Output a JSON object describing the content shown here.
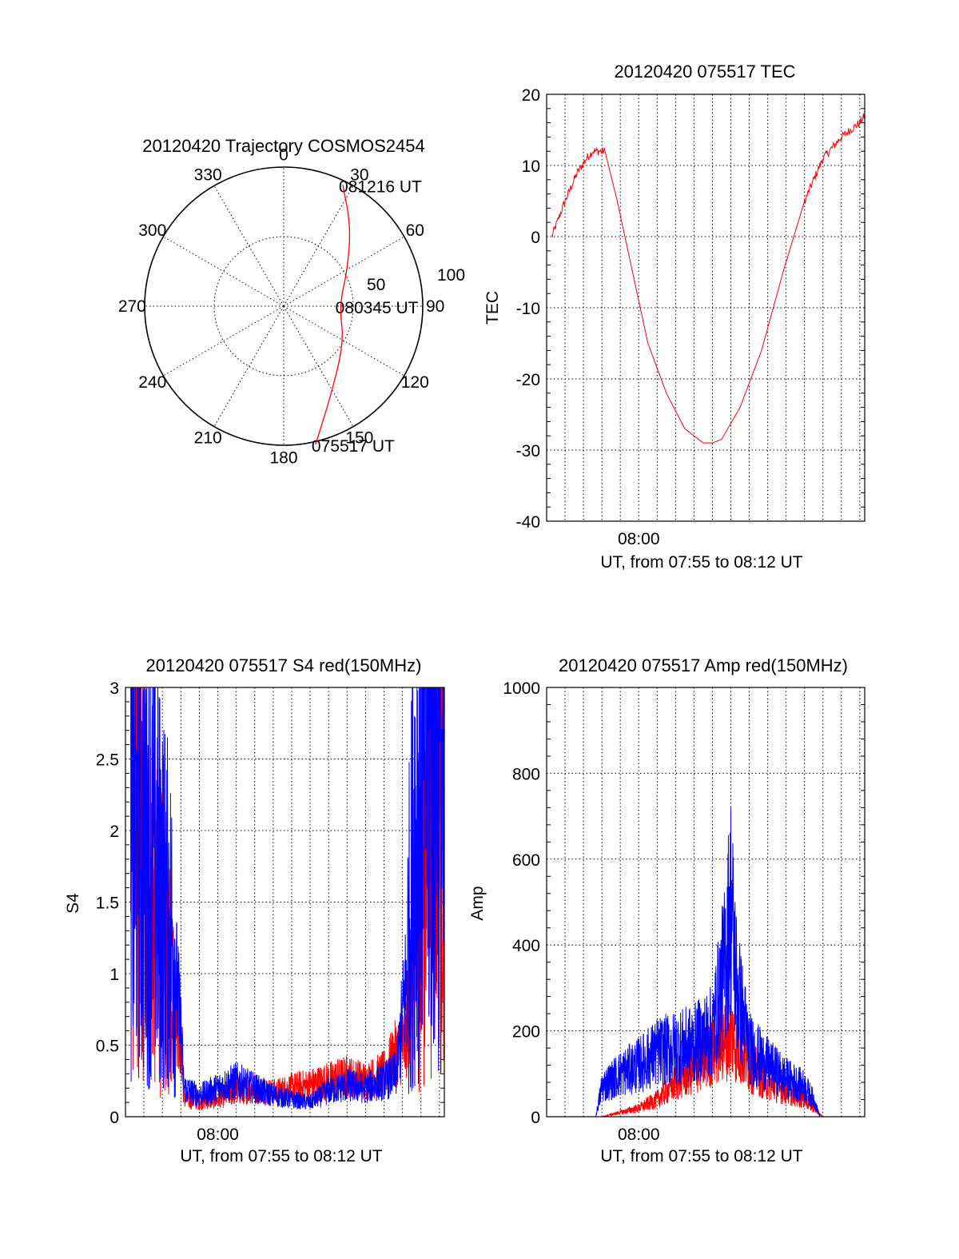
{
  "colors": {
    "red": "#ff0000",
    "blue": "#0000ff",
    "axis": "#000000"
  },
  "chart_data": [
    {
      "type": "polar",
      "title": "20120420 Trajectory COSMOS2454",
      "azimuth_labels": [
        "0",
        "30",
        "60",
        "90",
        "120",
        "150",
        "180",
        "210",
        "240",
        "270",
        "300",
        "330"
      ],
      "radial_labels": [
        "50",
        "100"
      ],
      "rlim": [
        0,
        100
      ],
      "grid": true,
      "series": [
        {
          "color": "red",
          "points": [
            {
              "az": 167,
              "r": 102
            },
            {
              "az": 150,
              "r": 70
            },
            {
              "az": 120,
              "r": 50
            },
            {
              "az": 90,
              "r": 40
            },
            {
              "az": 60,
              "r": 53
            },
            {
              "az": 40,
              "r": 75
            },
            {
              "az": 26,
              "r": 97
            }
          ]
        }
      ],
      "annotations": [
        {
          "text": "081216 UT",
          "az": 26,
          "r": 97
        },
        {
          "text": "080345 UT",
          "az": 90,
          "r": 40
        },
        {
          "text": "075517 UT",
          "az": 167,
          "r": 102
        }
      ]
    },
    {
      "type": "line",
      "title": "20120420 075517 TEC",
      "xlabel": "UT, from 07:55 to 08:12 UT",
      "ylabel": "TEC",
      "xlim": [
        "07:55",
        "08:12"
      ],
      "xticks": [
        "08:00"
      ],
      "ylim": [
        -40,
        20
      ],
      "yticks": [
        -40,
        -30,
        -20,
        -10,
        0,
        10,
        20
      ],
      "grid": true,
      "series": [
        {
          "color": "red",
          "x": [
            "07:55:17",
            "07:56:00",
            "07:56:40",
            "07:57:10",
            "07:57:30",
            "07:58:10",
            "07:58:50",
            "07:59:40",
            "08:00:30",
            "08:01:30",
            "08:02:30",
            "08:03:30",
            "08:04:00",
            "08:04:30",
            "08:05:30",
            "08:06:40",
            "08:07:50",
            "08:09:00",
            "08:10:00",
            "08:11:00",
            "08:12:00",
            "08:12:16"
          ],
          "y": [
            0,
            5,
            9,
            11,
            12,
            12,
            5,
            -5,
            -15,
            -22,
            -27,
            -29,
            -29,
            -28.5,
            -24,
            -16,
            -5,
            5,
            11,
            14,
            16,
            17
          ]
        }
      ]
    },
    {
      "type": "line",
      "title": "20120420 075517 S4 red(150MHz)",
      "xlabel": "UT, from 07:55 to 08:12 UT",
      "ylabel": "S4",
      "xlim": [
        "07:55",
        "08:12"
      ],
      "xticks": [
        "08:00"
      ],
      "ylim": [
        0,
        3
      ],
      "yticks": [
        0,
        0.5,
        1,
        1.5,
        2,
        2.5,
        3
      ],
      "grid": true,
      "series": [
        {
          "color": "red",
          "x": [
            "07:55:17",
            "07:56:30",
            "07:57:30",
            "07:58:00",
            "07:58:10",
            "07:59:00",
            "08:00:00",
            "08:01:00",
            "08:02:00",
            "08:03:00",
            "08:04:00",
            "08:05:00",
            "08:06:00",
            "08:07:00",
            "08:08:00",
            "08:09:00",
            "08:09:40",
            "08:10:10",
            "08:10:40",
            "08:11:30",
            "08:12:00",
            "08:12:16"
          ],
          "y": [
            2.2,
            1.4,
            1.0,
            0.55,
            0.12,
            0.1,
            0.12,
            0.18,
            0.2,
            0.17,
            0.2,
            0.22,
            0.25,
            0.28,
            0.25,
            0.3,
            0.45,
            0.5,
            1.2,
            2.5,
            2.8,
            2.2
          ]
        },
        {
          "color": "blue",
          "x": [
            "07:55:17",
            "07:56:30",
            "07:57:30",
            "07:58:00",
            "07:58:10",
            "07:59:00",
            "08:00:00",
            "08:01:00",
            "08:02:00",
            "08:03:00",
            "08:04:00",
            "08:05:00",
            "08:06:00",
            "08:07:00",
            "08:08:00",
            "08:09:00",
            "08:09:40",
            "08:10:10",
            "08:10:40",
            "08:11:30",
            "08:12:00",
            "08:12:16"
          ],
          "y": [
            2.0,
            1.8,
            1.3,
            0.6,
            0.2,
            0.15,
            0.2,
            0.25,
            0.2,
            0.15,
            0.12,
            0.1,
            0.18,
            0.22,
            0.2,
            0.25,
            0.3,
            0.9,
            2.0,
            2.7,
            2.6,
            1.5
          ]
        }
      ]
    },
    {
      "type": "line",
      "title": "20120420 075517 Amp red(150MHz)",
      "xlabel": "UT, from 07:55 to 08:12 UT",
      "ylabel": "Amp",
      "xlim": [
        "07:55",
        "08:12"
      ],
      "xticks": [
        "08:00"
      ],
      "ylim": [
        0,
        1000
      ],
      "yticks": [
        0,
        200,
        400,
        600,
        800,
        1000
      ],
      "grid": true,
      "series": [
        {
          "color": "red",
          "x": [
            "07:55:17",
            "07:58:00",
            "07:58:30",
            "07:59:00",
            "08:00:00",
            "08:01:00",
            "08:02:00",
            "08:03:00",
            "08:04:00",
            "08:05:00",
            "08:06:00",
            "08:07:00",
            "08:08:00",
            "08:09:00",
            "08:09:30",
            "08:10:00",
            "08:12:16"
          ],
          "y": [
            0,
            0,
            5,
            10,
            20,
            40,
            80,
            110,
            150,
            190,
            120,
            80,
            60,
            40,
            20,
            0,
            0
          ]
        },
        {
          "color": "blue",
          "x": [
            "07:55:17",
            "07:57:40",
            "07:58:00",
            "07:59:00",
            "08:00:00",
            "08:01:00",
            "08:02:00",
            "08:03:00",
            "08:04:00",
            "08:04:40",
            "08:05:00",
            "08:05:20",
            "08:06:00",
            "08:07:00",
            "08:08:00",
            "08:09:00",
            "08:09:30",
            "08:09:50",
            "08:10:10",
            "08:12:16"
          ],
          "y": [
            0,
            0,
            70,
            100,
            120,
            150,
            160,
            170,
            200,
            350,
            500,
            300,
            160,
            120,
            90,
            70,
            40,
            0,
            0,
            0
          ]
        }
      ]
    }
  ]
}
